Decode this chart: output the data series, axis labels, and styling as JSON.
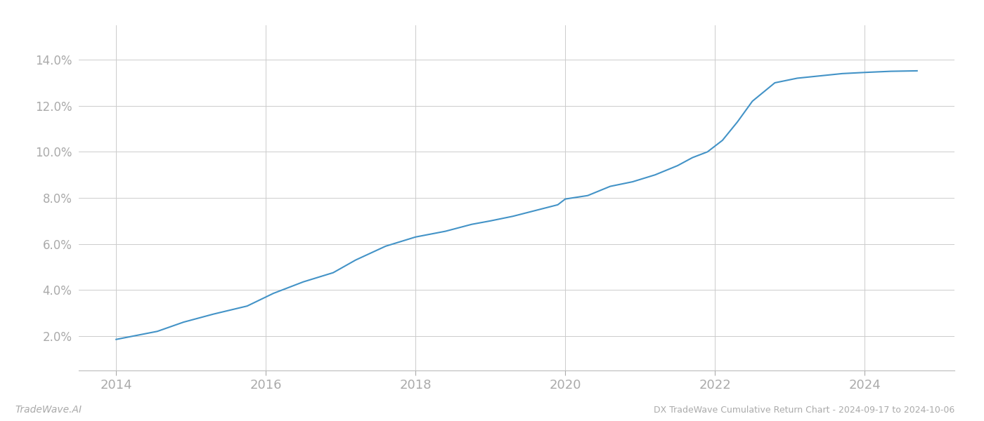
{
  "title": "DX TradeWave Cumulative Return Chart - 2024-09-17 to 2024-10-06",
  "watermark": "TradeWave.AI",
  "line_color": "#4393c7",
  "background_color": "#ffffff",
  "grid_color": "#cccccc",
  "text_color": "#aaaaaa",
  "x_years": [
    2014.0,
    2014.55,
    2014.9,
    2015.3,
    2015.75,
    2016.1,
    2016.5,
    2016.9,
    2017.2,
    2017.6,
    2018.0,
    2018.4,
    2018.75,
    2019.0,
    2019.3,
    2019.6,
    2019.9,
    2020.0,
    2020.3,
    2020.6,
    2020.9,
    2021.2,
    2021.5,
    2021.7,
    2021.9,
    2022.1,
    2022.3,
    2022.5,
    2022.8,
    2023.1,
    2023.4,
    2023.7,
    2024.0,
    2024.35,
    2024.7
  ],
  "y_values": [
    1.85,
    2.2,
    2.6,
    2.95,
    3.3,
    3.85,
    4.35,
    4.75,
    5.3,
    5.9,
    6.3,
    6.55,
    6.85,
    7.0,
    7.2,
    7.45,
    7.7,
    7.95,
    8.1,
    8.5,
    8.7,
    9.0,
    9.4,
    9.75,
    10.0,
    10.5,
    11.3,
    12.2,
    13.0,
    13.2,
    13.3,
    13.4,
    13.45,
    13.5,
    13.52
  ],
  "xlim": [
    2013.5,
    2025.2
  ],
  "ylim": [
    0.5,
    15.5
  ],
  "yticks": [
    2.0,
    4.0,
    6.0,
    8.0,
    10.0,
    12.0,
    14.0
  ],
  "xticks": [
    2014,
    2016,
    2018,
    2020,
    2022,
    2024
  ],
  "line_width": 1.5,
  "figsize": [
    14.0,
    6.0
  ],
  "dpi": 100
}
